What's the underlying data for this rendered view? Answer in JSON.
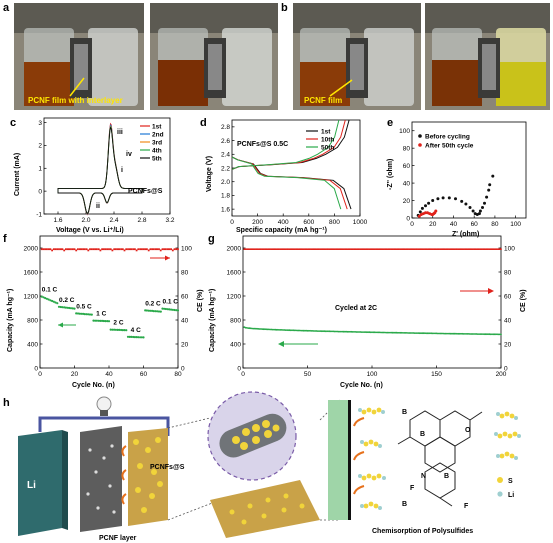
{
  "panels": {
    "a": {
      "letter": "a",
      "caption": "PCNF film with interlayer"
    },
    "b": {
      "letter": "b",
      "caption": "PCNF film"
    },
    "c": {
      "letter": "c"
    },
    "d": {
      "letter": "d"
    },
    "e": {
      "letter": "e"
    },
    "f": {
      "letter": "f"
    },
    "g": {
      "letter": "g"
    },
    "h": {
      "letter": "h"
    }
  },
  "schematic": {
    "li_label": "Li",
    "pcnf_layer": "PCNF layer",
    "pcnf_s": "PCNFs@S",
    "chem_title": "Chemisorption of Polysulfides",
    "legend_s": "S",
    "legend_li": "Li",
    "atoms": {
      "b": "B",
      "o": "O",
      "n": "N",
      "f": "F"
    }
  },
  "colors": {
    "red": "#e0221b",
    "green": "#2aa94a",
    "black": "#111111",
    "blue": "#1f77d4",
    "orange": "#f08a1c",
    "yellow": "#f0c82a"
  },
  "chart_data": [
    {
      "id": "c",
      "type": "line",
      "xlabel": "Voltage (V vs. Li⁺/Li)",
      "ylabel": "Current (mA)",
      "xlim": [
        1.4,
        3.2
      ],
      "ylim": [
        -1.0,
        3.2
      ],
      "xticks": [
        "1.6",
        "2.0",
        "2.4",
        "2.8",
        "3.2"
      ],
      "yticks": [
        "-1",
        "0",
        "1",
        "2",
        "3"
      ],
      "annotation": "PCNFs@S",
      "peak_labels": [
        "i",
        "ii",
        "iii",
        "iv"
      ],
      "legend": [
        "1st",
        "2nd",
        "3rd",
        "4th",
        "5th"
      ],
      "series": [
        {
          "name": "1st",
          "color": "#e0221b",
          "scale": 1.0
        },
        {
          "name": "2nd",
          "color": "#1f77d4",
          "scale": 0.98
        },
        {
          "name": "3rd",
          "color": "#f08a1c",
          "scale": 0.96
        },
        {
          "name": "4th",
          "color": "#2aa94a",
          "scale": 0.95
        },
        {
          "name": "5th",
          "color": "#111111",
          "scale": 0.94
        }
      ]
    },
    {
      "id": "d",
      "type": "line",
      "xlabel": "Specific capacity (mA hg⁻¹)",
      "ylabel": "Voltage (V)",
      "xlim": [
        0,
        1000
      ],
      "ylim": [
        1.5,
        2.9
      ],
      "xticks": [
        "0",
        "200",
        "400",
        "600",
        "800",
        "1000"
      ],
      "yticks": [
        "1.6",
        "1.8",
        "2.0",
        "2.2",
        "2.4",
        "2.6",
        "2.8"
      ],
      "annotation": "PCNFs@S  0.5C",
      "legend": [
        "1st",
        "10th",
        "50th"
      ],
      "series": [
        {
          "name": "1st",
          "color": "#111111",
          "cap": 930
        },
        {
          "name": "10th",
          "color": "#e0221b",
          "cap": 900
        },
        {
          "name": "50th",
          "color": "#2aa94a",
          "cap": 850
        }
      ]
    },
    {
      "id": "e",
      "type": "scatter",
      "xlabel": "Z' (ohm)",
      "ylabel": "-Z'' (ohm)",
      "xlim": [
        0,
        110
      ],
      "ylim": [
        0,
        110
      ],
      "xticks": [
        "0",
        "20",
        "40",
        "60",
        "80",
        "100"
      ],
      "yticks": [
        "0",
        "20",
        "40",
        "60",
        "80",
        "100"
      ],
      "legend": [
        "Before cycling",
        "After 50th cycle"
      ],
      "series": [
        {
          "name": "Before cycling",
          "color": "#111111",
          "points": [
            [
              6,
              3
            ],
            [
              8,
              7
            ],
            [
              10,
              11
            ],
            [
              13,
              14
            ],
            [
              16,
              17
            ],
            [
              20,
              20
            ],
            [
              25,
              22
            ],
            [
              30,
              23
            ],
            [
              36,
              23
            ],
            [
              42,
              22
            ],
            [
              48,
              19
            ],
            [
              52,
              16
            ],
            [
              56,
              12
            ],
            [
              59,
              8
            ],
            [
              61,
              5
            ],
            [
              63,
              4
            ],
            [
              65,
              5
            ],
            [
              66,
              8
            ],
            [
              68,
              12
            ],
            [
              70,
              17
            ],
            [
              72,
              24
            ],
            [
              74,
              32
            ],
            [
              75,
              38
            ],
            [
              78,
              48
            ]
          ]
        },
        {
          "name": "After 50th cycle",
          "color": "#e0221b",
          "points": [
            [
              7,
              2
            ],
            [
              9,
              4
            ],
            [
              11,
              5
            ],
            [
              13,
              6
            ],
            [
              15,
              6
            ],
            [
              17,
              5
            ],
            [
              19,
              4
            ],
            [
              20,
              4
            ],
            [
              21,
              5
            ],
            [
              22,
              6
            ],
            [
              23,
              8
            ]
          ]
        }
      ]
    },
    {
      "id": "f",
      "type": "scatter",
      "xlabel": "Cycle No. (n)",
      "ylabel": "Capacity (mA hg⁻¹)",
      "y2label": "CE (%)",
      "xlim": [
        0,
        80
      ],
      "ylim": [
        0,
        2200
      ],
      "y2lim": [
        0,
        110
      ],
      "xticks": [
        "0",
        "20",
        "40",
        "60",
        "80"
      ],
      "yticks": [
        "0",
        "400",
        "800",
        "1200",
        "1600",
        "2000"
      ],
      "y2ticks": [
        "0",
        "20",
        "40",
        "60",
        "80",
        "100"
      ],
      "rate_labels": [
        "0.1 C",
        "0.2 C",
        "0.5 C",
        "1 C",
        "2 C",
        "4 C",
        "0.2 C",
        "0.1 C"
      ],
      "capacity_steps": [
        {
          "from": 1,
          "to": 10,
          "start": 1190,
          "end": 1080
        },
        {
          "from": 11,
          "to": 20,
          "start": 1020,
          "end": 990
        },
        {
          "from": 21,
          "to": 30,
          "start": 910,
          "end": 890
        },
        {
          "from": 31,
          "to": 40,
          "start": 790,
          "end": 780
        },
        {
          "from": 41,
          "to": 50,
          "start": 640,
          "end": 630
        },
        {
          "from": 51,
          "to": 60,
          "start": 520,
          "end": 510
        },
        {
          "from": 61,
          "to": 70,
          "start": 960,
          "end": 940
        },
        {
          "from": 71,
          "to": 80,
          "start": 990,
          "end": 960
        }
      ],
      "ce_value": 99
    },
    {
      "id": "g",
      "type": "scatter",
      "xlabel": "Cycle No. (n)",
      "ylabel": "Capacity (mA hg⁻¹)",
      "y2label": "CE (%)",
      "xlim": [
        0,
        200
      ],
      "ylim": [
        0,
        2200
      ],
      "y2lim": [
        0,
        110
      ],
      "xticks": [
        "0",
        "50",
        "100",
        "150",
        "200"
      ],
      "yticks": [
        "0",
        "400",
        "800",
        "1200",
        "1600",
        "2000"
      ],
      "y2ticks": [
        "0",
        "20",
        "40",
        "60",
        "80",
        "100"
      ],
      "annotation": "Cycled at 2C",
      "capacity_start": 680,
      "capacity_end": 560,
      "ce_value": 99
    }
  ]
}
